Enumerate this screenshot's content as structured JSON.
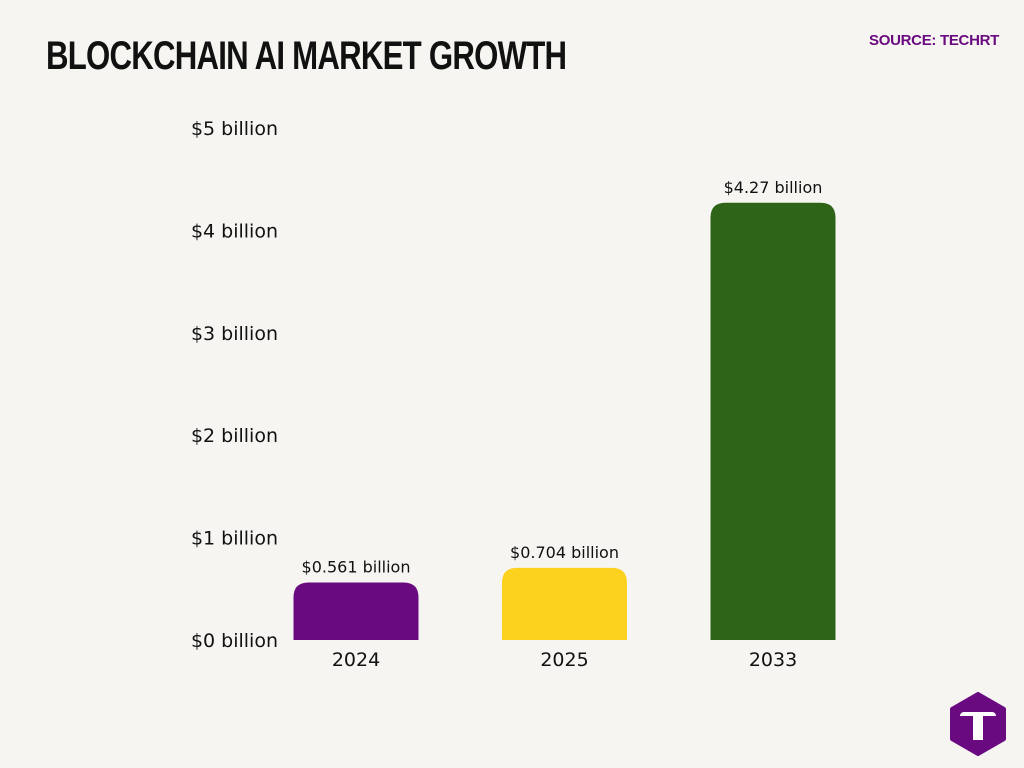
{
  "header": {
    "title": "BLOCKCHAIN AI MARKET GROWTH",
    "source": "SOURCE: TECHRT"
  },
  "chart_data": {
    "type": "bar",
    "title": "BLOCKCHAIN AI MARKET GROWTH",
    "categories": [
      "2024",
      "2025",
      "2033"
    ],
    "values": [
      0.561,
      0.704,
      4.27
    ],
    "value_labels": [
      "$0.561 billion",
      "$0.704 billion",
      "$4.27 billion"
    ],
    "colors": [
      "#6a0a80",
      "#fdd21f",
      "#2e6418"
    ],
    "ylim": [
      0,
      5
    ],
    "yticks": [
      0,
      1,
      2,
      3,
      4,
      5
    ],
    "ytick_labels": [
      "$0 billion",
      "$1 billion",
      "$2 billion",
      "$3 billion",
      "$4 billion",
      "$5 billion"
    ],
    "grid": false,
    "legend": "none"
  },
  "logo": {
    "letter": "T",
    "color": "#6a0a80"
  }
}
